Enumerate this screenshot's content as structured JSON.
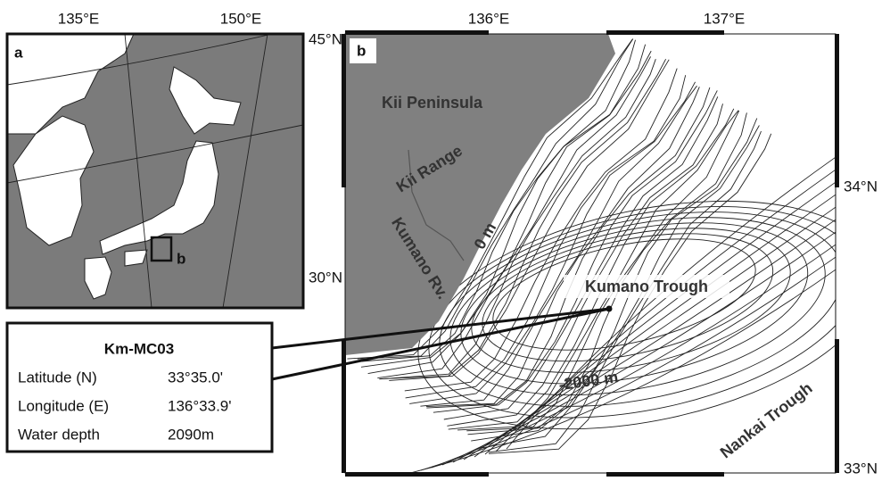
{
  "panel_a": {
    "label": "a",
    "lon_labels": [
      "135°E",
      "150°E"
    ],
    "lat_labels": [
      "45°N",
      "30°N"
    ],
    "box_label": "b"
  },
  "panel_b": {
    "label": "b",
    "lon_labels": [
      "136°E",
      "137°E"
    ],
    "lat_labels": [
      "34°N",
      "33°N"
    ],
    "place_labels": [
      "Kii Peninsula",
      "Kii Range",
      "Kumano Rv.",
      "0 m",
      "Kumano Trough",
      "-2000 m",
      "Nankai Trough"
    ]
  },
  "site": {
    "name": "Km-MC03",
    "rows": [
      [
        "Latitude (N)",
        "33°35.0'"
      ],
      [
        "Longitude (E)",
        "136°33.9'"
      ],
      [
        "Water depth",
        "2090m"
      ]
    ]
  }
}
